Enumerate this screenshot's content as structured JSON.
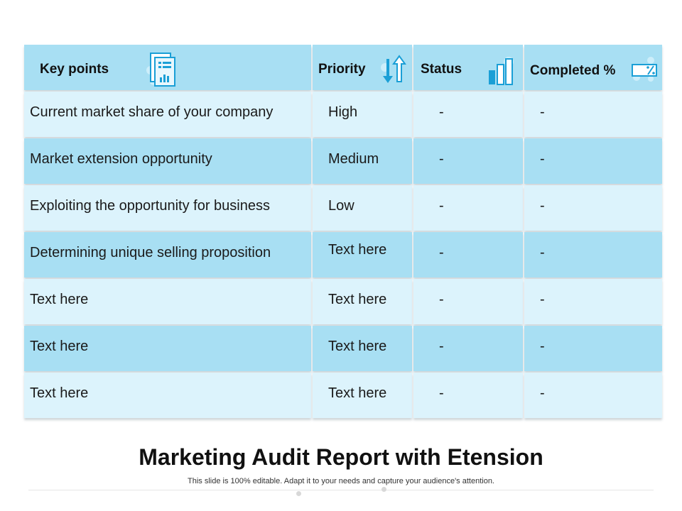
{
  "table": {
    "headers": {
      "key_points": "Key points",
      "priority": "Priority",
      "status": "Status",
      "completed": "Completed %"
    },
    "rows": [
      {
        "key_point": "Current market share of your company",
        "priority": "High",
        "status": "-",
        "completed": "-"
      },
      {
        "key_point": "Market extension opportunity",
        "priority": "Medium",
        "status": "-",
        "completed": "-"
      },
      {
        "key_point": "Exploiting the opportunity for business",
        "priority": "Low",
        "status": "-",
        "completed": "-"
      },
      {
        "key_point": "Determining unique selling proposition",
        "priority": "Text here",
        "status": "-",
        "completed": "-"
      },
      {
        "key_point": "Text here",
        "priority": "Text here",
        "status": "-",
        "completed": "-"
      },
      {
        "key_point": "Text here",
        "priority": "Text here",
        "status": "-",
        "completed": "-"
      },
      {
        "key_point": "Text here",
        "priority": "Text here",
        "status": "-",
        "completed": "-"
      }
    ]
  },
  "icons": {
    "key_points": "report-document-icon",
    "priority": "up-down-arrows-icon",
    "status": "bar-chart-icon",
    "completed": "percent-icon"
  },
  "colors": {
    "dark_row": "#a8dff3",
    "light_row": "#dcf3fc",
    "icon_blue": "#1a9fd6"
  },
  "footer": {
    "title": "Marketing Audit Report with Etension",
    "subtitle": "This slide is 100% editable. Adapt it to your needs and capture your audience's attention."
  }
}
